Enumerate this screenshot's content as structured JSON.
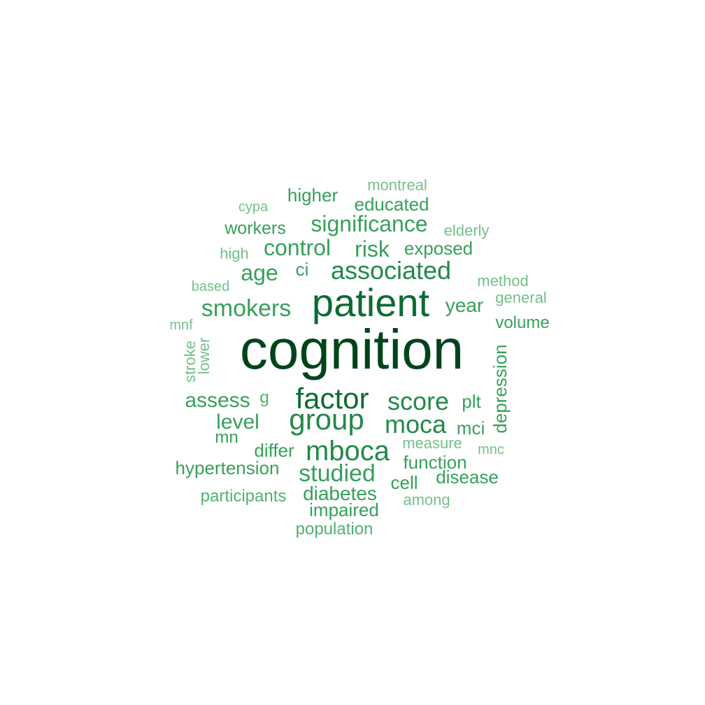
{
  "colors": {
    "tier1": "#00441b",
    "tier2": "#0c6b32",
    "tier3": "#23894a",
    "tier4": "#36a05b",
    "tier5": "#52b06f",
    "tier6": "#74c08a",
    "background": "#ffffff"
  },
  "words": {
    "cognition": "cognition",
    "patient": "patient",
    "factor": "factor",
    "group": "group",
    "mboca": "mboca",
    "associated": "associated",
    "smokers": "smokers",
    "score": "score",
    "moca": "moca",
    "studied": "studied",
    "significance": "significance",
    "control": "control",
    "risk": "risk",
    "age": "age",
    "assess": "assess",
    "level": "level",
    "year": "year",
    "educated": "educated",
    "exposed": "exposed",
    "hypertension": "hypertension",
    "function": "function",
    "diabetes": "diabetes",
    "impaired": "impaired",
    "differ": "differ",
    "mci": "mci",
    "plt": "plt",
    "depression": "depression",
    "cell": "cell",
    "disease": "disease",
    "workers": "workers",
    "higher": "higher",
    "ci": "ci",
    "mn": "mn",
    "volume": "volume",
    "g": "g",
    "participants": "participants",
    "population": "population",
    "among": "among",
    "measure": "measure",
    "mnc": "mnc",
    "method": "method",
    "general": "general",
    "elderly": "elderly",
    "montreal": "montreal",
    "cypa": "cypa",
    "high": "high",
    "based": "based",
    "mnf": "mnf",
    "stroke": "stroke",
    "lower": "lower"
  }
}
